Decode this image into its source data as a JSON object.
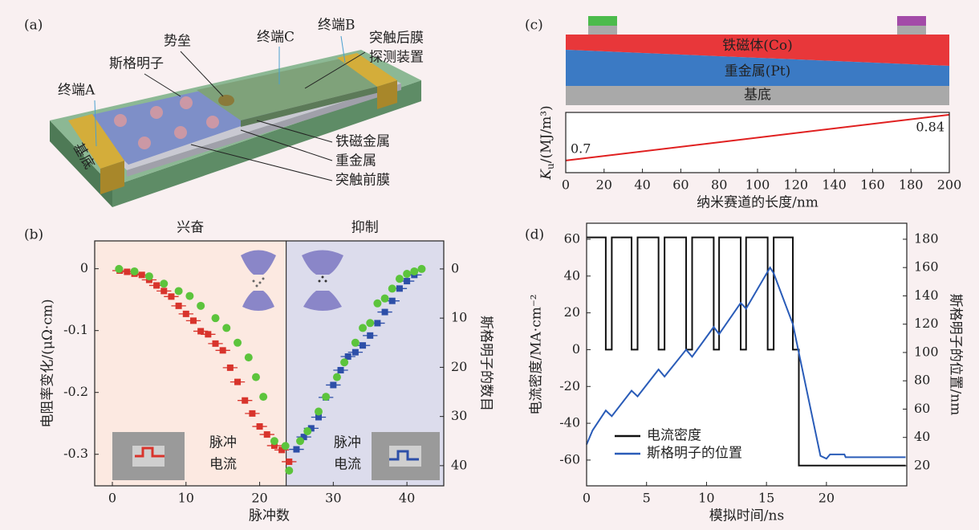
{
  "figure_a": {
    "panel_label": "(a)",
    "labels": {
      "terminal_a": "终端A",
      "skyrmion": "斯格明子",
      "barrier": "势垒",
      "terminal_c": "终端C",
      "terminal_b": "终端B",
      "postsynaptic": [
        "突触后膜",
        "探测装置"
      ],
      "ferromagnet": "铁磁金属",
      "heavy_metal": "重金属",
      "presynaptic": "突触前膜",
      "substrate": "基底"
    }
  },
  "chart_data": [
    {
      "type": "scatter",
      "panel_label": "(b)",
      "xlabel": "脉冲数",
      "ylabel": "电阻率变化/(μΩ·cm)",
      "y2label": "斯格明子的数目",
      "y2color": "#4cb82c",
      "xlim": [
        -2.4,
        45
      ],
      "xticks": [
        0,
        10,
        20,
        30,
        40
      ],
      "ylim": [
        -0.351,
        0.045
      ],
      "yticks": [
        0,
        -0.1,
        -0.2,
        -0.3
      ],
      "y2lim": [
        44.1,
        -5.7
      ],
      "y2ticks": [
        0,
        10,
        20,
        30,
        40
      ],
      "regions": [
        {
          "label": "兴奋",
          "color": "#fce9e1",
          "label_color": "#d8342c",
          "start": -2.4,
          "end": 23.6
        },
        {
          "label": "抑制",
          "color": "#dcdcec",
          "label_color": "#333333",
          "start": 23.6,
          "end": 45
        }
      ],
      "pulse_labels": [
        {
          "lines": [
            "脉冲",
            "电流"
          ],
          "color": "#d8342c"
        },
        {
          "lines": [
            "脉冲",
            "电流"
          ],
          "color": "#2d4fa8"
        }
      ],
      "series": [
        {
          "color": "#d8342c",
          "marker": "square",
          "xerr": 1,
          "x": [
            1,
            2,
            3,
            4,
            5,
            6,
            7,
            8,
            9,
            10,
            11,
            12,
            13,
            14,
            15,
            16,
            17,
            18,
            19,
            20,
            21,
            22,
            23,
            24
          ],
          "values": [
            -0.003,
            -0.005,
            -0.008,
            -0.01,
            -0.018,
            -0.027,
            -0.036,
            -0.045,
            -0.06,
            -0.073,
            -0.084,
            -0.101,
            -0.106,
            -0.121,
            -0.132,
            -0.16,
            -0.183,
            -0.213,
            -0.234,
            -0.255,
            -0.268,
            -0.286,
            -0.293,
            -0.312
          ]
        },
        {
          "color": "#2d4fa8",
          "marker": "square",
          "xerr": 1,
          "x": [
            25,
            26,
            27,
            28,
            29,
            30,
            31,
            32,
            33,
            34,
            35,
            36,
            37,
            38,
            39,
            40,
            41
          ],
          "values": [
            -0.292,
            -0.272,
            -0.258,
            -0.24,
            -0.208,
            -0.188,
            -0.164,
            -0.142,
            -0.135,
            -0.124,
            -0.108,
            -0.088,
            -0.07,
            -0.052,
            -0.032,
            -0.02,
            -0.01
          ]
        },
        {
          "color": "#5cc43c",
          "marker": "circle",
          "axis": "y2",
          "x": [
            0.9,
            3,
            5,
            7,
            9,
            10.5,
            12,
            14,
            15.5,
            17,
            18.5,
            19.5,
            20.5,
            22,
            23.5,
            24,
            25.5,
            26.5,
            28,
            29,
            30.5,
            31.5,
            33,
            34,
            35,
            36,
            37,
            38,
            39,
            40,
            41,
            42
          ],
          "values": [
            0,
            0.5,
            1.5,
            3,
            4.5,
            5.5,
            7.5,
            10,
            12,
            15,
            18,
            22,
            26,
            35,
            36,
            41,
            35,
            33,
            29,
            26,
            22,
            19,
            15,
            12,
            11,
            7,
            6,
            4,
            2,
            1,
            0.5,
            0
          ]
        }
      ]
    },
    {
      "type": "line",
      "panel_label": "(c)",
      "xlabel": "纳米赛道的长度/nm",
      "ylabel": {
        "symbol": "K",
        "subscript": "u",
        "unit": "/(MJ/m³)"
      },
      "layers": [
        {
          "label": "铁磁体(Co)",
          "color": "#e8373a"
        },
        {
          "label": "重金属(Pt)",
          "color": "#3b7ac4"
        },
        {
          "label": "基底",
          "color": "#a9a9a9"
        }
      ],
      "xlim": [
        0,
        200
      ],
      "xticks": [
        0,
        20,
        40,
        60,
        80,
        100,
        120,
        140,
        160,
        180,
        200
      ],
      "ylim": [
        0.663,
        0.847
      ],
      "x": [
        0,
        200
      ],
      "values": [
        0.7,
        0.84
      ],
      "color": "#e02020"
    },
    {
      "type": "line",
      "panel_label": "(d)",
      "xlabel": "模拟时间/ns",
      "ylabel": "电流密度/MA·cm⁻²",
      "y2label": "斯格明子的位置/nm",
      "xlim": [
        0,
        26.7
      ],
      "xticks": [
        0,
        5,
        10,
        15,
        20
      ],
      "ylim": [
        -74,
        68.7
      ],
      "yticks": [
        -60,
        -40,
        -20,
        0,
        20,
        40,
        60
      ],
      "y2lim": [
        5.8,
        191.3
      ],
      "y2ticks": [
        20,
        40,
        60,
        80,
        100,
        120,
        140,
        160,
        180
      ],
      "legend": "lower left",
      "series": [
        {
          "name": "电流密度",
          "color": "#111111",
          "x": [
            0,
            1.6,
            1.6,
            2.1,
            2.1,
            3.75,
            3.75,
            4.25,
            4.25,
            6,
            6,
            6.5,
            6.5,
            8.3,
            8.3,
            8.8,
            8.8,
            10.6,
            10.6,
            11.05,
            11.05,
            12.85,
            12.85,
            13.3,
            13.3,
            15.1,
            15.1,
            15.6,
            15.6,
            17.2,
            17.2,
            17.7,
            17.7,
            26.6
          ],
          "values": [
            61,
            61,
            0,
            0,
            61,
            61,
            0,
            0,
            61,
            61,
            0,
            0,
            61,
            61,
            0,
            0,
            61,
            61,
            0,
            0,
            61,
            61,
            0,
            0,
            61,
            61,
            0,
            0,
            61,
            61,
            0,
            0,
            -63,
            -63
          ]
        },
        {
          "name": "斯格明子的位置",
          "color": "#2a5cb8",
          "axis": "y2",
          "x": [
            0,
            0.5,
            1.6,
            2.1,
            3.75,
            4.25,
            6,
            6.5,
            8.3,
            8.8,
            10.6,
            11.05,
            12.85,
            13.3,
            15.3,
            15.6,
            17.2,
            19.5,
            20,
            20.3,
            21.5,
            21.6,
            26.6
          ],
          "values": [
            35,
            45,
            59,
            55,
            73,
            69,
            88,
            83,
            102,
            97,
            118,
            113,
            135,
            131,
            160,
            156,
            120,
            27,
            25,
            28,
            28,
            26,
            26
          ]
        }
      ]
    }
  ]
}
